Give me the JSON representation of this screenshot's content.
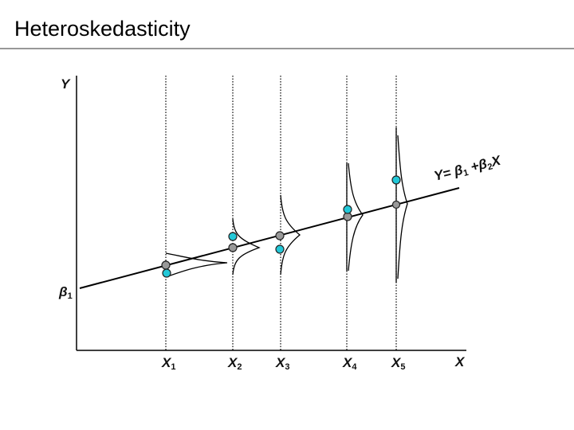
{
  "title": "Heteroskedasticity",
  "axis_labels": {
    "y": "Y",
    "x": "X",
    "intercept": {
      "main": "β",
      "sub": "1"
    }
  },
  "equation": {
    "parts": [
      "Y= ",
      "β",
      "1",
      " +",
      "β",
      "2",
      "X"
    ]
  },
  "x_labels": [
    {
      "main": "X",
      "sub": "1"
    },
    {
      "main": "X",
      "sub": "2"
    },
    {
      "main": "X",
      "sub": "3"
    },
    {
      "main": "X",
      "sub": "4"
    },
    {
      "main": "X",
      "sub": "5"
    }
  ]
}
